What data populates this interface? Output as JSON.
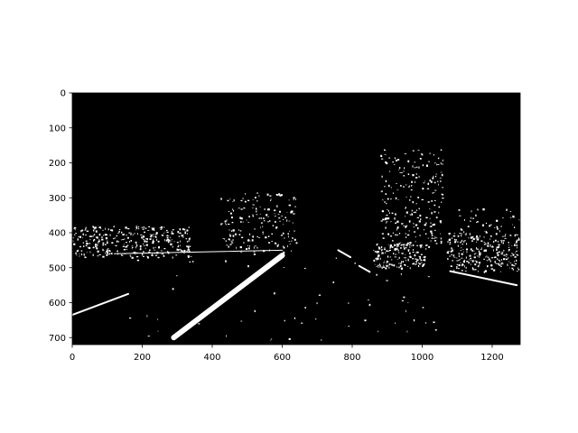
{
  "chart_data": {
    "type": "heatmap",
    "title": "",
    "xlabel": "",
    "ylabel": "",
    "xlim": [
      0,
      1280
    ],
    "ylim": [
      720,
      0
    ],
    "xticks": [
      0,
      200,
      400,
      600,
      800,
      1000,
      1200
    ],
    "yticks": [
      0,
      100,
      200,
      300,
      400,
      500,
      600,
      700
    ],
    "background": "#000000",
    "foreground": "#ffffff",
    "colormap": "binary (black=0, white=1)",
    "description": "",
    "segments": [
      {
        "name": "left-lane-line",
        "from": [
          600,
          465
        ],
        "to": [
          290,
          700
        ],
        "width": 6
      },
      {
        "name": "lower-left-line",
        "from": [
          0,
          635
        ],
        "to": [
          160,
          575
        ],
        "width": 2
      },
      {
        "name": "right-lane-dashes-1",
        "from": [
          760,
          450
        ],
        "to": [
          795,
          470
        ],
        "width": 2
      },
      {
        "name": "right-lane-dashes-2",
        "from": [
          820,
          495
        ],
        "to": [
          850,
          512
        ],
        "width": 2
      },
      {
        "name": "right-bottom-line",
        "from": [
          1080,
          510
        ],
        "to": [
          1270,
          550
        ],
        "width": 2
      },
      {
        "name": "horizon-line",
        "from": [
          120,
          460
        ],
        "to": [
          600,
          450
        ],
        "width": 1
      }
    ],
    "clusters": [
      {
        "name": "left-roadside-edges",
        "x": [
          0,
          340
        ],
        "y": [
          380,
          470
        ],
        "count": 340
      },
      {
        "name": "center-horizon-edges",
        "x": [
          420,
          640
        ],
        "y": [
          285,
          460
        ],
        "count": 180
      },
      {
        "name": "right-tree-edges",
        "x": [
          880,
          1060
        ],
        "y": [
          160,
          440
        ],
        "count": 230
      },
      {
        "name": "right-vehicle-edges",
        "x": [
          860,
          1010
        ],
        "y": [
          430,
          500
        ],
        "count": 160
      },
      {
        "name": "far-right-vehicle-edges",
        "x": [
          1070,
          1280
        ],
        "y": [
          400,
          510
        ],
        "count": 260
      },
      {
        "name": "far-right-mid-edges",
        "x": [
          1100,
          1280
        ],
        "y": [
          330,
          400
        ],
        "count": 40
      },
      {
        "name": "road-sparse-edges",
        "x": [
          130,
          1070
        ],
        "y": [
          470,
          720
        ],
        "count": 60
      }
    ]
  }
}
